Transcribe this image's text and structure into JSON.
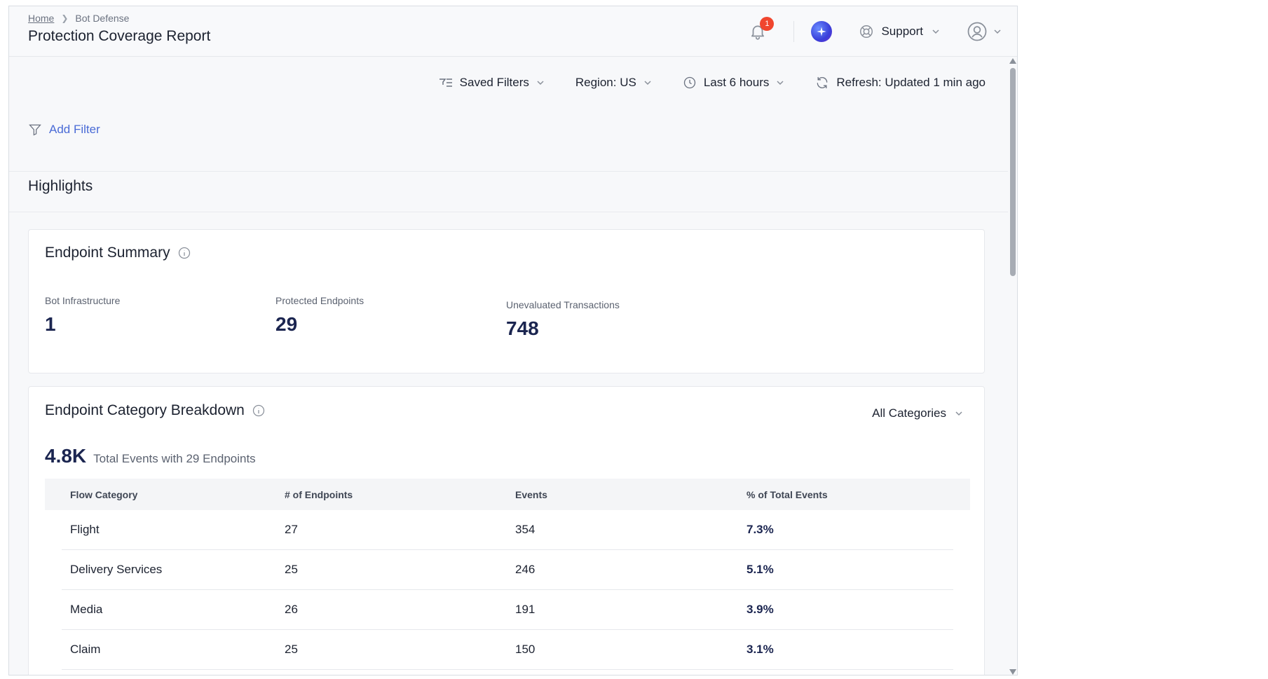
{
  "breadcrumb": {
    "home": "Home",
    "current": "Bot Defense"
  },
  "page_title": "Protection Coverage Report",
  "header": {
    "notification_count": "1",
    "support_label": "Support"
  },
  "filters": {
    "saved_filters": "Saved Filters",
    "region": "Region: US",
    "time_range": "Last 6 hours",
    "refresh": "Refresh: Updated 1 min ago",
    "add_filter": "Add Filter"
  },
  "highlights_title": "Highlights",
  "endpoint_summary": {
    "title": "Endpoint Summary",
    "metrics": [
      {
        "label": "Bot Infrastructure",
        "value": "1"
      },
      {
        "label": "Protected Endpoints",
        "value": "29"
      },
      {
        "label": "Unevaluated Transactions",
        "value": "748"
      }
    ]
  },
  "category_breakdown": {
    "title": "Endpoint Category Breakdown",
    "category_select": "All Categories",
    "total_value": "4.8K",
    "total_caption": "Total Events with 29 Endpoints",
    "columns": [
      "Flow Category",
      "# of Endpoints",
      "Events",
      "% of Total Events"
    ],
    "rows": [
      [
        "Flight",
        "27",
        "354",
        "7.3%"
      ],
      [
        "Delivery Services",
        "25",
        "246",
        "5.1%"
      ],
      [
        "Media",
        "26",
        "191",
        "3.9%"
      ],
      [
        "Claim",
        "25",
        "150",
        "3.1%"
      ]
    ]
  },
  "icons": {
    "bell": "bell-icon",
    "assistant": "sparkle-icon",
    "support": "lifebuoy-icon",
    "user": "user-avatar-icon",
    "filter": "filter-icon",
    "clock": "clock-icon",
    "refresh": "refresh-icon",
    "info": "info-icon",
    "chevron": "chevron-down-icon"
  },
  "colors": {
    "accent_link": "#4a6bd6",
    "badge": "#f0462e",
    "value_text": "#1b2550"
  }
}
